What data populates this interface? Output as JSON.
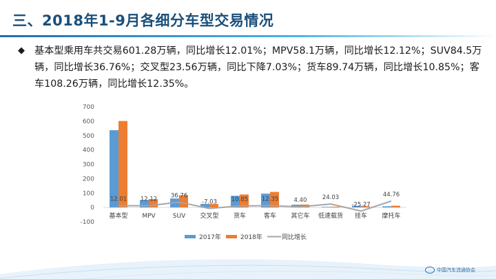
{
  "slide": {
    "title": "三、2018年1-9月各细分车型交易情况",
    "bullet_icon": "diamond-bullet-icon",
    "bullet_text": "基本型乘用车共交易601.28万辆，同比增长12.01%；MPV58.1万辆，同比增长12.12%；SUV84.5万辆，同比增长36.76%；交叉型23.56万辆，同比下降7.03%；货车89.74万辆，同比增长10.85%；客车108.26万辆，同比增长12.35%。",
    "footer_logo_text": "中国汽车流通协会",
    "colors": {
      "title": "#1a4f7a",
      "accent": "#1b6fa8"
    }
  },
  "chart_data": {
    "type": "bar",
    "categories": [
      "基本型",
      "MPV",
      "SUV",
      "交叉型",
      "货车",
      "客车",
      "其它车",
      "低速载货",
      "挂车",
      "摩托车"
    ],
    "series": [
      {
        "name": "2017年",
        "type": "bar",
        "color": "#5b9bd5",
        "values": [
          537,
          52,
          62,
          25,
          81,
          96,
          19,
          4,
          11,
          8
        ]
      },
      {
        "name": "2018年",
        "type": "bar",
        "color": "#ed7d31",
        "values": [
          601,
          58,
          85,
          24,
          90,
          108,
          20,
          5,
          8,
          12
        ]
      },
      {
        "name": "同比增长",
        "type": "line",
        "color": "#a5a5a5",
        "values": [
          12.01,
          12.12,
          36.76,
          -7.03,
          10.85,
          12.35,
          4.4,
          24.03,
          -25.27,
          44.76
        ]
      }
    ],
    "data_labels": [
      "12.01",
      "12.12",
      "36.76",
      "-7.03",
      "10.85",
      "12.35",
      "4.40",
      "24.03",
      "-25.27",
      "44.76"
    ],
    "y_ticks": [
      "700",
      "600",
      "500",
      "400",
      "300",
      "200",
      "100",
      "0",
      "-100"
    ],
    "ylim": [
      -100,
      700
    ],
    "title": "",
    "xlabel": "",
    "ylabel": "",
    "grid": false,
    "legend_position": "bottom"
  }
}
